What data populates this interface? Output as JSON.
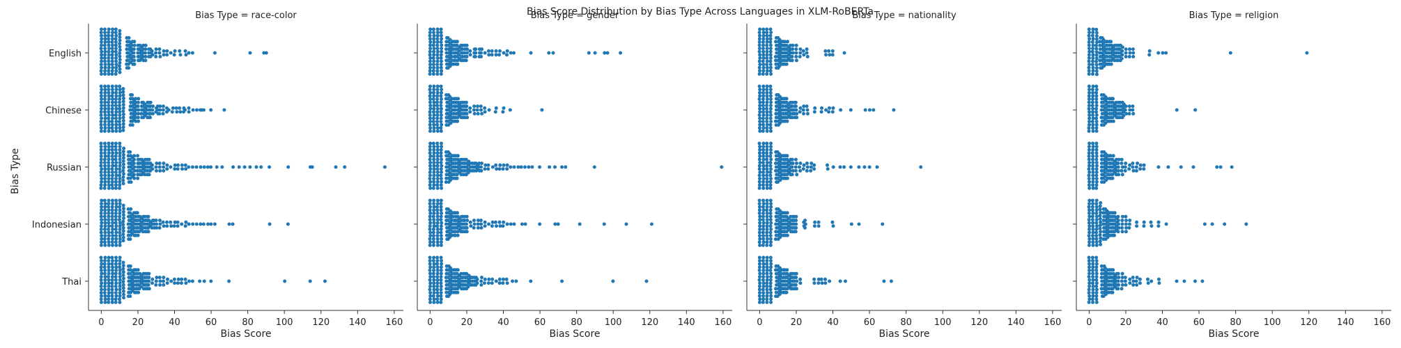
{
  "chart_data": {
    "type": "scatter",
    "subtype": "swarmplot",
    "title": "Bias Score Distribution by Bias Type Across Languages in XLM-RoBERTa",
    "xlabel": "Bias Score",
    "ylabel": "Bias Type",
    "xlim": [
      -7,
      165
    ],
    "xticks": [
      0,
      20,
      40,
      60,
      80,
      100,
      120,
      140,
      160
    ],
    "categories": [
      "English",
      "Chinese",
      "Russian",
      "Indonesian",
      "Thai"
    ],
    "point_color": "#1f77b4",
    "grid": false,
    "panels": [
      {
        "name": "race-color",
        "title": "Bias Type = race-color",
        "series": [
          {
            "name": "English",
            "core": [
              0,
              12
            ],
            "tail": [
              14,
              15,
              16,
              17,
              18,
              20,
              21,
              22,
              23,
              24,
              26,
              27,
              28,
              30,
              32,
              34,
              36,
              38,
              40,
              43,
              46,
              48,
              50,
              62,
              81,
              89,
              90
            ]
          },
          {
            "name": "Chinese",
            "core": [
              0,
              14
            ],
            "tail": [
              16,
              17,
              18,
              19,
              20,
              22,
              23,
              24,
              25,
              26,
              27,
              28,
              30,
              31,
              32,
              34,
              36,
              37,
              39,
              41,
              43,
              45,
              46,
              48,
              50,
              52,
              54,
              55,
              56,
              60,
              67
            ]
          },
          {
            "name": "Russian",
            "core": [
              0,
              13
            ],
            "tail": [
              15,
              16,
              17,
              18,
              20,
              21,
              22,
              23,
              24,
              25,
              26,
              27,
              28,
              30,
              32,
              34,
              36,
              38,
              40,
              42,
              44,
              46,
              48,
              50,
              52,
              54,
              56,
              58,
              60,
              63,
              66,
              72,
              75,
              78,
              81,
              85,
              87,
              92,
              102,
              114,
              115,
              128,
              133,
              155
            ]
          },
          {
            "name": "Indonesian",
            "core": [
              0,
              13
            ],
            "tail": [
              15,
              16,
              17,
              18,
              19,
              20,
              21,
              22,
              23,
              24,
              25,
              26,
              27,
              28,
              29,
              30,
              32,
              34,
              36,
              38,
              40,
              42,
              44,
              46,
              48,
              50,
              52,
              54,
              56,
              58,
              60,
              62,
              70,
              72,
              92,
              102
            ]
          },
          {
            "name": "Thai",
            "core": [
              0,
              13
            ],
            "tail": [
              15,
              16,
              17,
              18,
              19,
              20,
              21,
              22,
              23,
              24,
              25,
              26,
              28,
              30,
              32,
              34,
              36,
              38,
              40,
              42,
              44,
              46,
              48,
              50,
              54,
              56,
              60,
              70,
              100,
              114,
              122
            ]
          }
        ]
      },
      {
        "name": "gender",
        "title": "Bias Type = gender",
        "series": [
          {
            "name": "English",
            "core": [
              0,
              8
            ],
            "tail": [
              9,
              10,
              11,
              12,
              13,
              14,
              15,
              16,
              17,
              18,
              19,
              20,
              22,
              24,
              25,
              27,
              28,
              30,
              32,
              34,
              36,
              38,
              40,
              42,
              44,
              46,
              55,
              65,
              67,
              87,
              90,
              95,
              97,
              104
            ]
          },
          {
            "name": "Chinese",
            "core": [
              0,
              8
            ],
            "tail": [
              9,
              10,
              11,
              12,
              13,
              14,
              15,
              16,
              17,
              18,
              19,
              20,
              22,
              24,
              26,
              28,
              30,
              32,
              36,
              40,
              44,
              61
            ]
          },
          {
            "name": "Russian",
            "core": [
              0,
              8
            ],
            "tail": [
              9,
              10,
              11,
              12,
              13,
              14,
              15,
              16,
              17,
              18,
              19,
              20,
              21,
              22,
              23,
              24,
              25,
              26,
              27,
              28,
              30,
              32,
              34,
              36,
              38,
              40,
              42,
              44,
              46,
              48,
              50,
              52,
              54,
              56,
              60,
              65,
              68,
              72,
              74,
              90,
              159
            ]
          },
          {
            "name": "Indonesian",
            "core": [
              0,
              8
            ],
            "tail": [
              9,
              10,
              11,
              12,
              13,
              14,
              15,
              16,
              17,
              18,
              19,
              20,
              22,
              24,
              26,
              28,
              30,
              32,
              34,
              36,
              38,
              40,
              42,
              44,
              46,
              50,
              52,
              60,
              68,
              70,
              82,
              95,
              107,
              121
            ]
          },
          {
            "name": "Thai",
            "core": [
              0,
              8
            ],
            "tail": [
              9,
              10,
              11,
              12,
              13,
              14,
              15,
              16,
              17,
              18,
              19,
              20,
              21,
              22,
              23,
              24,
              25,
              26,
              28,
              30,
              32,
              34,
              36,
              38,
              40,
              42,
              45,
              47,
              55,
              72,
              100,
              118
            ]
          }
        ]
      },
      {
        "name": "nationality",
        "title": "Bias Type = nationality",
        "series": [
          {
            "name": "English",
            "core": [
              0,
              8
            ],
            "tail": [
              9,
              10,
              11,
              12,
              13,
              14,
              15,
              16,
              17,
              18,
              20,
              22,
              24,
              26,
              36,
              38,
              40,
              46
            ]
          },
          {
            "name": "Chinese",
            "core": [
              0,
              8
            ],
            "tail": [
              9,
              10,
              11,
              12,
              13,
              14,
              15,
              16,
              17,
              18,
              19,
              20,
              22,
              24,
              26,
              30,
              34,
              36,
              38,
              40,
              44,
              50,
              58,
              60,
              62,
              73
            ]
          },
          {
            "name": "Russian",
            "core": [
              0,
              8
            ],
            "tail": [
              9,
              10,
              11,
              12,
              13,
              14,
              15,
              16,
              17,
              18,
              20,
              22,
              24,
              26,
              28,
              30,
              37,
              40,
              44,
              46,
              50,
              54,
              57,
              60,
              64,
              88
            ]
          },
          {
            "name": "Indonesian",
            "core": [
              0,
              8
            ],
            "tail": [
              9,
              10,
              11,
              12,
              13,
              14,
              15,
              16,
              17,
              18,
              19,
              20,
              24,
              25,
              30,
              32,
              40,
              50,
              54,
              67
            ]
          },
          {
            "name": "Thai",
            "core": [
              0,
              8
            ],
            "tail": [
              9,
              10,
              11,
              12,
              13,
              14,
              15,
              16,
              17,
              18,
              19,
              20,
              22,
              30,
              32,
              34,
              36,
              38,
              44,
              47,
              68,
              72
            ]
          }
        ]
      },
      {
        "name": "religion",
        "title": "Bias Type = religion",
        "series": [
          {
            "name": "English",
            "core": [
              0,
              5
            ],
            "tail": [
              6,
              7,
              8,
              9,
              10,
              11,
              12,
              13,
              14,
              15,
              16,
              17,
              18,
              20,
              22,
              24,
              33,
              38,
              40,
              42,
              77,
              119
            ]
          },
          {
            "name": "Chinese",
            "core": [
              0,
              6
            ],
            "tail": [
              7,
              8,
              9,
              10,
              11,
              12,
              13,
              14,
              15,
              16,
              17,
              18,
              19,
              20,
              22,
              24,
              48,
              58
            ]
          },
          {
            "name": "Russian",
            "core": [
              0,
              6
            ],
            "tail": [
              7,
              8,
              9,
              10,
              11,
              12,
              13,
              14,
              15,
              16,
              18,
              20,
              22,
              24,
              26,
              28,
              30,
              38,
              43,
              50,
              57,
              70,
              72,
              78
            ]
          },
          {
            "name": "Indonesian",
            "core": [
              0,
              7
            ],
            "tail": [
              8,
              9,
              10,
              11,
              12,
              13,
              14,
              15,
              16,
              18,
              20,
              22,
              26,
              30,
              34,
              38,
              42,
              63,
              67,
              74,
              86
            ]
          },
          {
            "name": "Thai",
            "core": [
              0,
              6
            ],
            "tail": [
              7,
              8,
              9,
              10,
              11,
              12,
              13,
              14,
              15,
              16,
              18,
              20,
              22,
              24,
              26,
              28,
              32,
              34,
              38,
              48,
              52,
              58,
              62
            ]
          }
        ]
      }
    ]
  }
}
